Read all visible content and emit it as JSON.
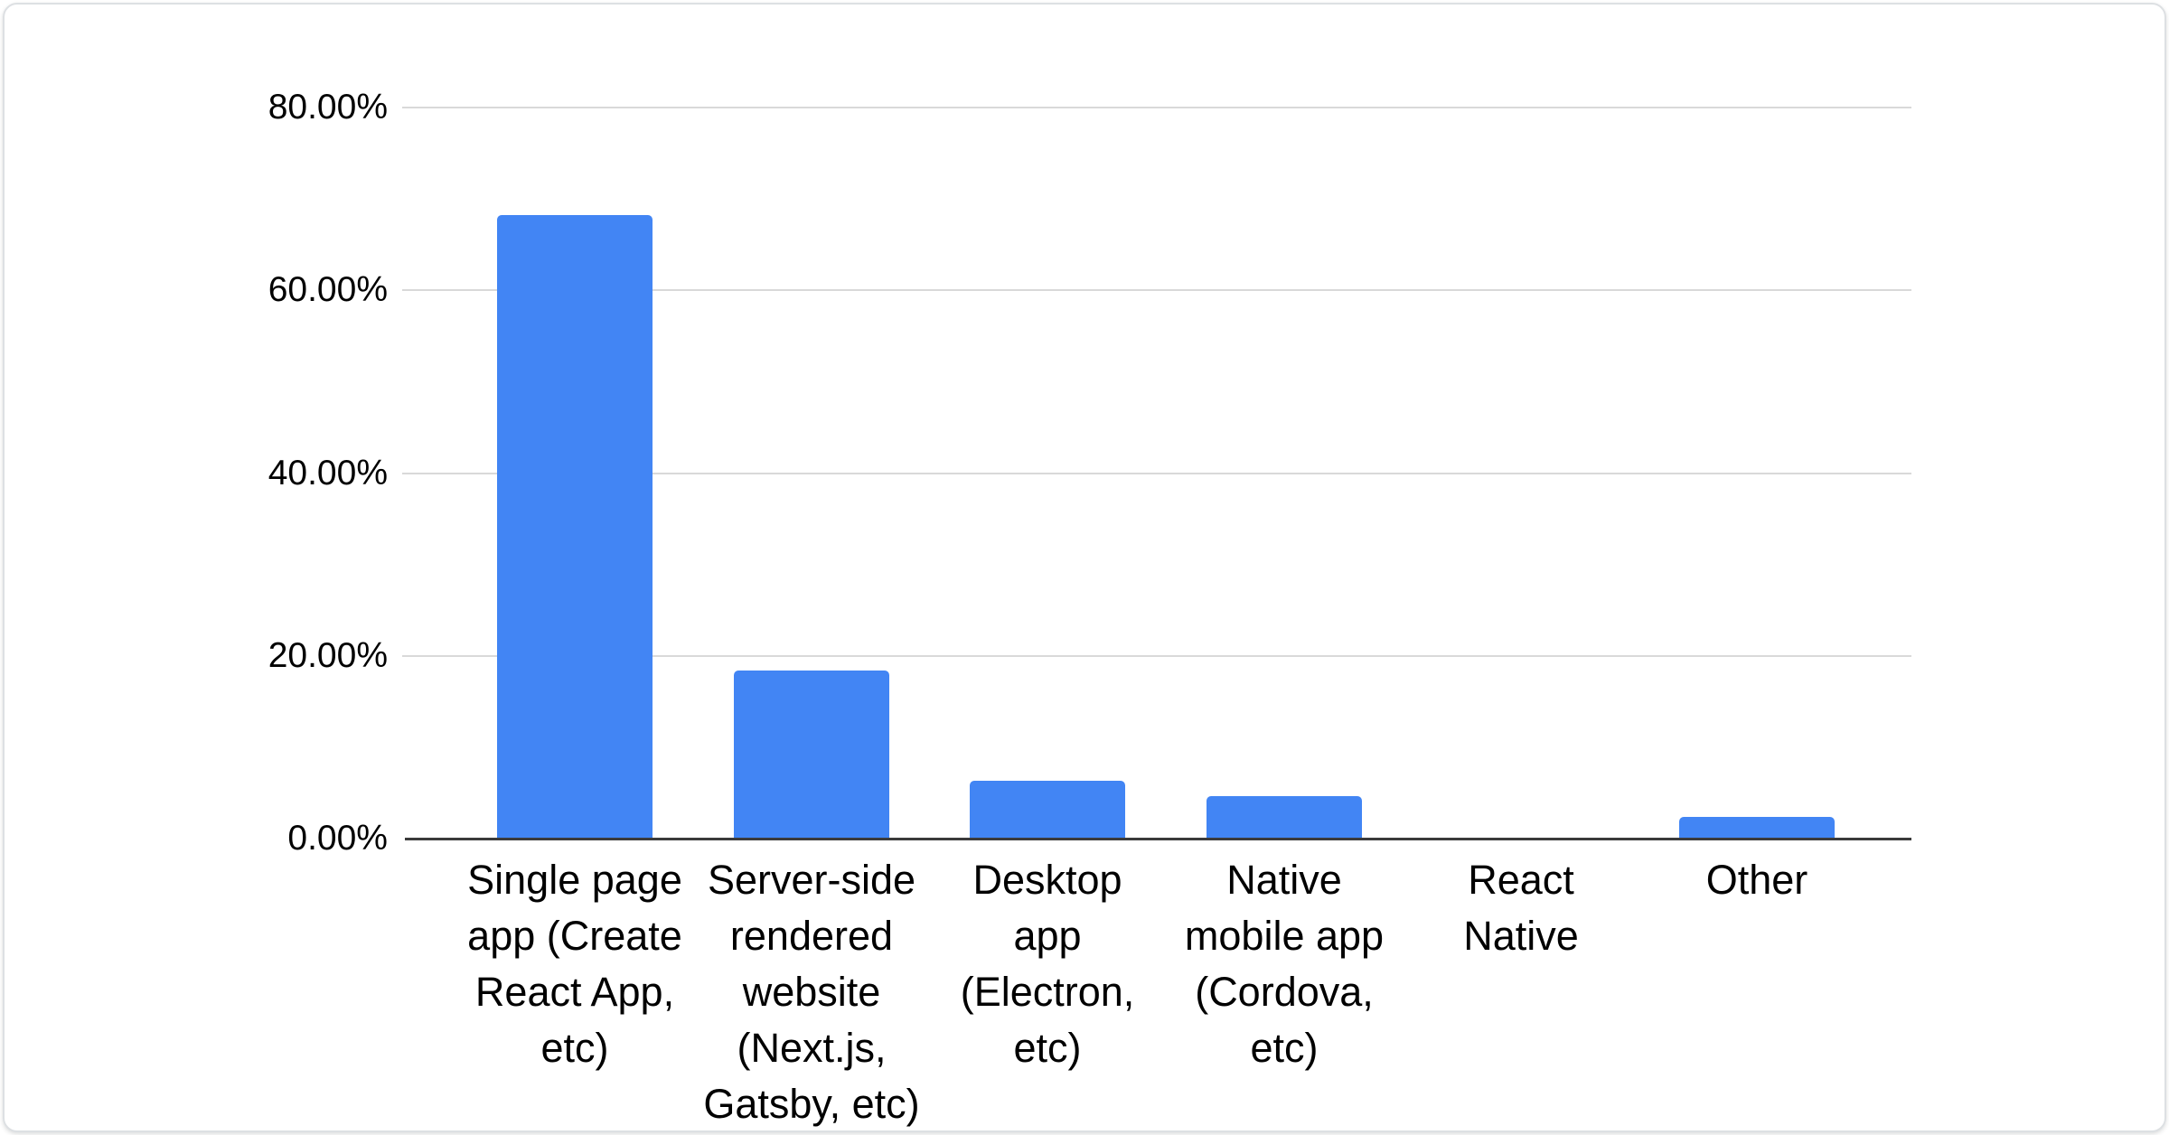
{
  "chart_data": {
    "type": "bar",
    "title": "",
    "xlabel": "",
    "ylabel": "",
    "unit": "%",
    "categories": [
      "Single page app (Create React App, etc)",
      "Server-side rendered website (Next.js, Gatsby, etc)",
      "Desktop app (Electron, etc)",
      "Native mobile app (Cordova, etc)",
      "React Native",
      "Other"
    ],
    "values": [
      68.2,
      18.4,
      6.3,
      4.6,
      0,
      2.4
    ],
    "ylim": [
      0,
      80
    ],
    "yticks": [
      {
        "label": "80.00%",
        "value": 80
      },
      {
        "label": "60.00%",
        "value": 60
      },
      {
        "label": "40.00%",
        "value": 40
      },
      {
        "label": "20.00%",
        "value": 20
      },
      {
        "label": "0.00%",
        "value": 0
      }
    ],
    "grid": true,
    "legend": "none",
    "colors": {
      "bar": "#4285f4",
      "gridline": "#d9d9d9",
      "axis": "#3b3b3b",
      "text": "#000000"
    }
  }
}
